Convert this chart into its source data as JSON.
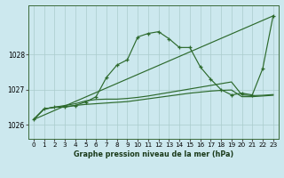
{
  "title": "Graphe pression niveau de la mer (hPa)",
  "bg_color": "#cce8ee",
  "grid_color": "#aacccc",
  "line_color": "#2d6a2d",
  "xlim": [
    -0.5,
    23.5
  ],
  "ylim": [
    1025.6,
    1029.4
  ],
  "yticks": [
    1026,
    1027,
    1028
  ],
  "xtick_labels": [
    "0",
    "1",
    "2",
    "3",
    "4",
    "5",
    "6",
    "7",
    "8",
    "9",
    "10",
    "11",
    "12",
    "13",
    "14",
    "15",
    "16",
    "17",
    "18",
    "19",
    "20",
    "21",
    "22",
    "23"
  ],
  "series1_x": [
    0,
    1,
    2,
    3,
    4,
    5,
    6,
    7,
    8,
    9,
    10,
    11,
    12,
    13,
    14,
    15,
    16,
    17,
    18,
    19,
    20,
    21,
    22,
    23
  ],
  "series1_y": [
    1026.15,
    1026.45,
    1026.5,
    1026.5,
    1026.55,
    1026.65,
    1026.8,
    1027.35,
    1027.7,
    1027.85,
    1028.5,
    1028.6,
    1028.65,
    1028.45,
    1028.2,
    1028.2,
    1027.65,
    1027.3,
    1027.0,
    1026.85,
    1026.9,
    1026.85,
    1027.6,
    1029.1
  ],
  "series2_x": [
    0,
    1,
    2,
    3,
    4,
    5,
    6,
    7,
    8,
    9,
    10,
    11,
    12,
    13,
    14,
    15,
    16,
    17,
    18,
    19,
    20,
    21,
    22,
    23
  ],
  "series2_y": [
    1026.15,
    1026.45,
    1026.5,
    1026.55,
    1026.6,
    1026.68,
    1026.72,
    1026.73,
    1026.73,
    1026.75,
    1026.78,
    1026.82,
    1026.87,
    1026.92,
    1026.97,
    1027.02,
    1027.07,
    1027.12,
    1027.17,
    1027.22,
    1026.85,
    1026.83,
    1026.84,
    1026.86
  ],
  "series3_x": [
    0,
    1,
    2,
    3,
    4,
    5,
    6,
    7,
    8,
    9,
    10,
    11,
    12,
    13,
    14,
    15,
    16,
    17,
    18,
    19,
    20,
    21,
    22,
    23
  ],
  "series3_y": [
    1026.15,
    1026.45,
    1026.5,
    1026.52,
    1026.55,
    1026.58,
    1026.6,
    1026.62,
    1026.64,
    1026.66,
    1026.7,
    1026.74,
    1026.78,
    1026.82,
    1026.86,
    1026.9,
    1026.93,
    1026.96,
    1026.98,
    1026.99,
    1026.8,
    1026.8,
    1026.82,
    1026.84
  ],
  "series4_x": [
    0,
    23
  ],
  "series4_y": [
    1026.15,
    1029.1
  ]
}
